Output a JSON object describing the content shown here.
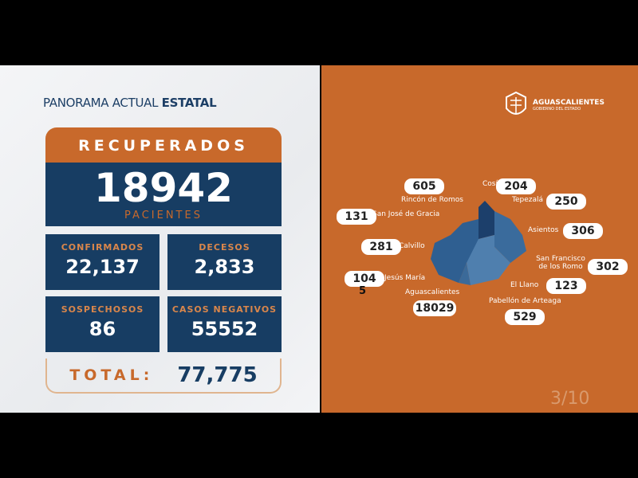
{
  "header": {
    "title_regular": "PANORAMA ACTUAL",
    "title_bold": "ESTATAL"
  },
  "recuperados": {
    "label": "RECUPERADOS",
    "value": "18942",
    "unit": "PACIENTES"
  },
  "stats": [
    {
      "label": "CONFIRMADOS",
      "value": "22,137"
    },
    {
      "label": "DECESOS",
      "value": "2,833"
    },
    {
      "label": "SOSPECHOSOS",
      "value": "86"
    },
    {
      "label": "CASOS NEGATIVOS",
      "value": "55552"
    }
  ],
  "total": {
    "label": "TOTAL:",
    "value": "77,775"
  },
  "logo": {
    "name": "AGUASCALIENTES",
    "sub": "GOBIERNO DEL ESTADO"
  },
  "municipios": [
    {
      "name": "Rincón de Romos",
      "value": "605"
    },
    {
      "name": "Cosío",
      "value": "204"
    },
    {
      "name": "Tepezalá",
      "value": "250"
    },
    {
      "name": "San José de Gracia",
      "value": "131"
    },
    {
      "name": "Asientos",
      "value": "306"
    },
    {
      "name": "Calvillo",
      "value": "281"
    },
    {
      "name": "San Francisco de los Romo",
      "value": "302"
    },
    {
      "name": "Jesús María",
      "value": "104"
    },
    {
      "name": "El Llano",
      "value": "123"
    },
    {
      "name": "Aguascalientes",
      "value": "18029"
    },
    {
      "name": "Pabellón de Arteaga",
      "value": "529"
    }
  ],
  "jesus_maria_extra": "5",
  "page": "3/10",
  "colors": {
    "orange": "#c8692b",
    "navy": "#173d63"
  }
}
